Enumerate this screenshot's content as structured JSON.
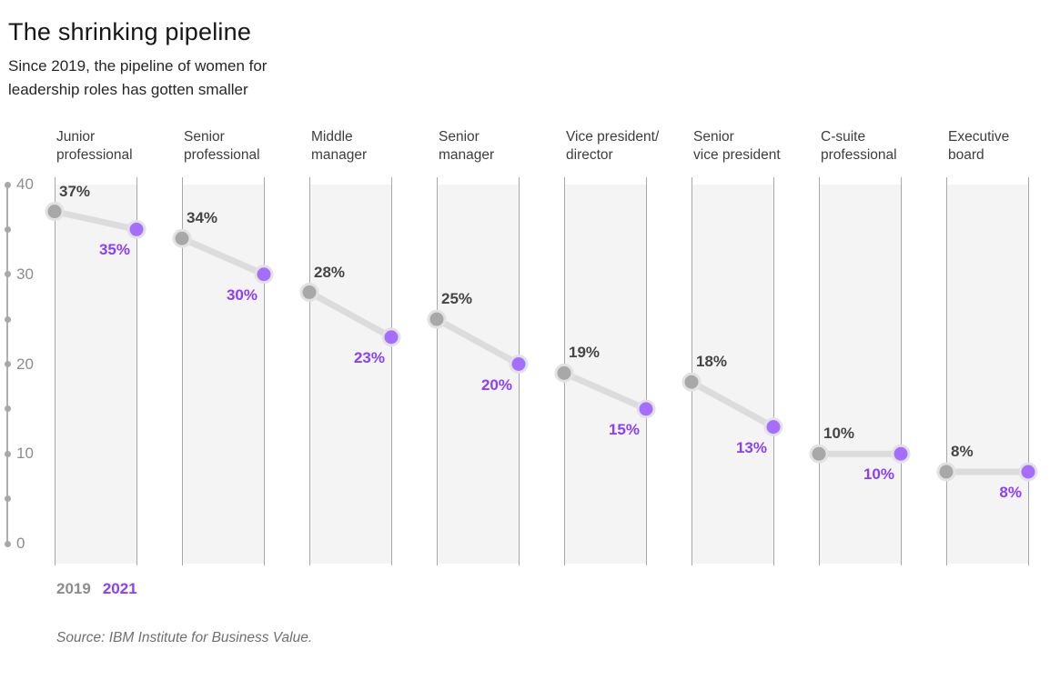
{
  "title": "The shrinking pipeline",
  "subtitle": "Since 2019, the pipeline of women for\nleadership roles has gotten smaller",
  "legend": {
    "year_2019": "2019",
    "year_2021": "2021"
  },
  "source": "Source: IBM Institute for Business Value.",
  "colors": {
    "series_2019": "#a8a8a8",
    "series_2021": "#a56eff",
    "label_2019": "#454545",
    "label_2021": "#8a3ffc",
    "connector": "#dcdcdc",
    "dot_ring": "#e2e2e2",
    "band_fill": "#f4f4f4",
    "band_edge": "#a8a8a8",
    "axis": "#b0b0b0",
    "axis_dot": "#a8a8a8",
    "axis_label": "#8d8d8d"
  },
  "chart_data": {
    "type": "line",
    "variant": "slope-dumbbell",
    "title": "The shrinking pipeline",
    "subtitle": "Since 2019, the pipeline of women for leadership roles has gotten smaller",
    "categories": [
      "Junior\nprofessional",
      "Senior\nprofessional",
      "Middle\nmanager",
      "Senior\nmanager",
      "Vice president/\ndirector",
      "Senior\nvice president",
      "C-suite\nprofessional",
      "Executive\nboard"
    ],
    "series": [
      {
        "name": "2019",
        "values": [
          37,
          34,
          28,
          25,
          19,
          18,
          10,
          8
        ]
      },
      {
        "name": "2021",
        "values": [
          35,
          30,
          23,
          20,
          15,
          13,
          10,
          8
        ]
      }
    ],
    "unit": "%",
    "ylim": [
      0,
      40
    ],
    "yticks_labeled": [
      0,
      10,
      20,
      30,
      40
    ],
    "yticks_minor": [
      5,
      15,
      25,
      35
    ],
    "grid": "column-bands",
    "legend_position": "bottom-left"
  }
}
